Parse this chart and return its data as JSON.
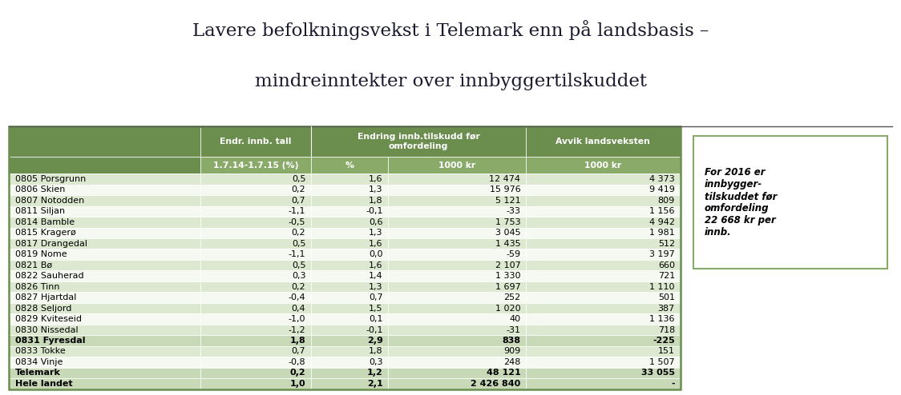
{
  "title_line1": "Lavere befolkningsvekst i Telemark enn på landsbasis –",
  "title_line2": "mindreinntekter over innbyggertilskuddet",
  "rows": [
    [
      "0805 Porsgrunn",
      "0,5",
      "1,6",
      "12 474",
      "4 373",
      false
    ],
    [
      "0806 Skien",
      "0,2",
      "1,3",
      "15 976",
      "9 419",
      false
    ],
    [
      "0807 Notodden",
      "0,7",
      "1,8",
      "5 121",
      "809",
      false
    ],
    [
      "0811 Siljan",
      "-1,1",
      "-0,1",
      "-33",
      "1 156",
      false
    ],
    [
      "0814 Bamble",
      "-0,5",
      "0,6",
      "1 753",
      "4 942",
      false
    ],
    [
      "0815 Kragerø",
      "0,2",
      "1,3",
      "3 045",
      "1 981",
      false
    ],
    [
      "0817 Drangedal",
      "0,5",
      "1,6",
      "1 435",
      "512",
      false
    ],
    [
      "0819 Nome",
      "-1,1",
      "0,0",
      "-59",
      "3 197",
      false
    ],
    [
      "0821 Bø",
      "0,5",
      "1,6",
      "2 107",
      "660",
      false
    ],
    [
      "0822 Sauherad",
      "0,3",
      "1,4",
      "1 330",
      "721",
      false
    ],
    [
      "0826 Tinn",
      "0,2",
      "1,3",
      "1 697",
      "1 110",
      false
    ],
    [
      "0827 Hjartdal",
      "-0,4",
      "0,7",
      "252",
      "501",
      false
    ],
    [
      "0828 Seljord",
      "0,4",
      "1,5",
      "1 020",
      "387",
      false
    ],
    [
      "0829 Kviteseid",
      "-1,0",
      "0,1",
      "40",
      "1 136",
      false
    ],
    [
      "0830 Nissedal",
      "-1,2",
      "-0,1",
      "-31",
      "718",
      false
    ],
    [
      "0831 Fyresdal",
      "1,8",
      "2,9",
      "838",
      "-225",
      true
    ],
    [
      "0833 Tokke",
      "0,7",
      "1,8",
      "909",
      "151",
      false
    ],
    [
      "0834 Vinje",
      "-0,8",
      "0,3",
      "248",
      "1 507",
      false
    ],
    [
      "Telemark",
      "0,2",
      "1,2",
      "48 121",
      "33 055",
      true
    ],
    [
      "Hele landet",
      "1,0",
      "2,1",
      "2 426 840",
      "-",
      true
    ]
  ],
  "note_text": "For 2016 er\ninnbygger-\ntilskuddet før\nomfordeling\n22 668 kr per\ninnb.",
  "header_bg": "#6b8e4e",
  "header_text": "#ffffff",
  "row_bg_even": "#dce9d0",
  "row_bg_odd": "#f5f9f2",
  "bold_row_bg": "#c8d9b8",
  "table_border": "#6b8e4e",
  "title_color": "#1a1a2e",
  "note_border": "#8aaa6a",
  "note_bg": "#ffffff",
  "sub_header_bg": "#8aaa6a"
}
